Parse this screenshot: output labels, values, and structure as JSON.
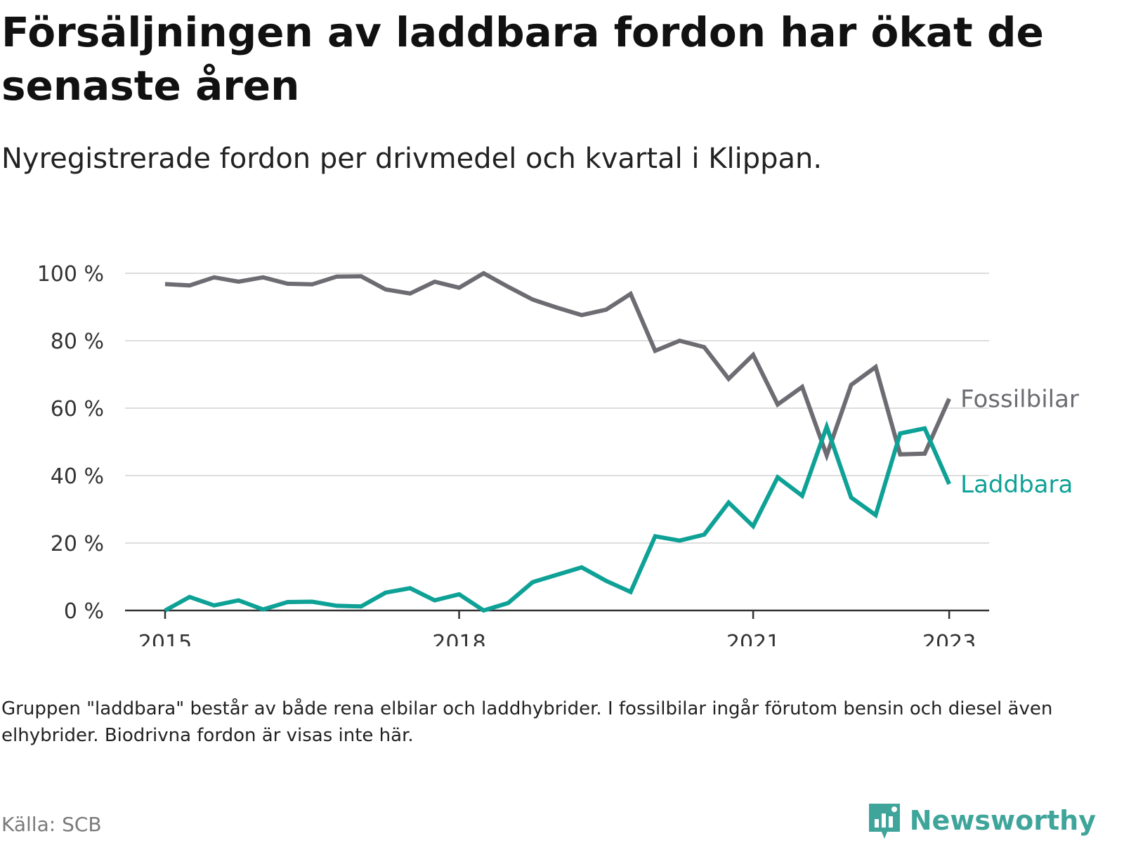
{
  "title": "Försäljningen av laddbara fordon har ökat de senaste åren",
  "subtitle": "Nyregistrerade fordon per drivmedel och kvartal i Klippan.",
  "note": "Gruppen \"laddbara\" består av både rena elbilar och laddhybrider. I fossilbilar ingår förutom bensin och diesel även elhybrider. Biodrivna fordon är visas inte här.",
  "source": "Källa: SCB",
  "brand": "Newsworthy",
  "chart_data": {
    "type": "line",
    "x_unit": "quarter",
    "x": [
      "2015 Q1",
      "2015 Q2",
      "2015 Q3",
      "2015 Q4",
      "2016 Q1",
      "2016 Q2",
      "2016 Q3",
      "2016 Q4",
      "2017 Q1",
      "2017 Q2",
      "2017 Q3",
      "2017 Q4",
      "2018 Q1",
      "2018 Q2",
      "2018 Q3",
      "2018 Q4",
      "2019 Q1",
      "2019 Q2",
      "2019 Q3",
      "2019 Q4",
      "2020 Q1",
      "2020 Q2",
      "2020 Q3",
      "2020 Q4",
      "2021 Q1",
      "2021 Q2",
      "2021 Q3",
      "2021 Q4",
      "2022 Q1",
      "2022 Q2",
      "2022 Q3",
      "2022 Q4",
      "2023 Q1"
    ],
    "series": [
      {
        "name": "Fossilbilar",
        "color": "#6d6c72",
        "values": [
          96.8,
          96.4,
          98.8,
          97.5,
          98.8,
          96.9,
          96.7,
          99.0,
          99.1,
          95.2,
          94.0,
          97.5,
          95.7,
          100.0,
          96.0,
          92.2,
          89.8,
          87.6,
          89.2,
          93.9,
          77.0,
          80.0,
          78.1,
          68.7,
          75.8,
          61.1,
          66.3,
          46.0,
          66.9,
          72.2,
          46.3,
          46.5,
          62.8
        ]
      },
      {
        "name": "Laddbara",
        "color": "#0ea196",
        "values": [
          0.0,
          4.0,
          1.5,
          3.0,
          0.3,
          2.5,
          2.6,
          1.4,
          1.2,
          5.3,
          6.6,
          3.0,
          4.8,
          0.0,
          2.2,
          8.4,
          10.6,
          12.8,
          8.8,
          5.5,
          22.0,
          20.7,
          22.5,
          32.0,
          25.0,
          39.5,
          34.0,
          54.5,
          33.5,
          28.3,
          52.5,
          54.0,
          37.5
        ]
      }
    ],
    "y_ticks": [
      "0 %",
      "20 %",
      "40 %",
      "60 %",
      "80 %",
      "100 %"
    ],
    "y_tick_values": [
      0,
      20,
      40,
      60,
      80,
      100
    ],
    "x_ticks": [
      "2015",
      "2018",
      "2021",
      "2023"
    ],
    "x_tick_values": [
      2015,
      2018,
      2021,
      2023
    ],
    "ylim": [
      0,
      100
    ],
    "grid": true,
    "legend": "direct labels at line ends"
  }
}
